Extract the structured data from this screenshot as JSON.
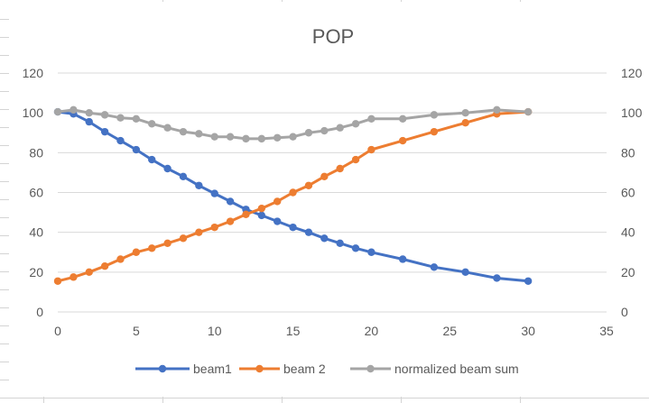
{
  "chart_data": {
    "type": "line",
    "title": "POP",
    "xlabel": "",
    "ylabel": "",
    "xlim": [
      0,
      35
    ],
    "ylim": [
      0,
      120
    ],
    "x_ticks": [
      "0",
      "5",
      "10",
      "15",
      "20",
      "25",
      "30",
      "35"
    ],
    "y_ticks": [
      "0",
      "20",
      "40",
      "60",
      "80",
      "100",
      "120"
    ],
    "y2_ticks": [
      "0",
      "20",
      "40",
      "60",
      "80",
      "100",
      "120"
    ],
    "grid": true,
    "legend_position": "bottom",
    "series": [
      {
        "name": "beam1",
        "color": "#4472C4",
        "x": [
          0,
          1,
          2,
          3,
          4,
          5,
          6,
          7,
          8,
          9,
          10,
          11,
          12,
          13,
          14,
          15,
          16,
          17,
          18,
          19,
          20,
          22,
          24,
          26,
          28,
          30
        ],
        "y": [
          100.5,
          99.5,
          95.5,
          90.5,
          86,
          81.5,
          76.5,
          72,
          68,
          63.5,
          59.5,
          55.5,
          51.5,
          48.5,
          45.5,
          42.5,
          40,
          37,
          34.5,
          32,
          30,
          26.5,
          22.5,
          20,
          17,
          15.5
        ]
      },
      {
        "name": "beam 2",
        "color": "#ED7D31",
        "x": [
          0,
          1,
          2,
          3,
          4,
          5,
          6,
          7,
          8,
          9,
          10,
          11,
          12,
          13,
          14,
          15,
          16,
          17,
          18,
          19,
          20,
          22,
          24,
          26,
          28,
          30
        ],
        "y": [
          15.5,
          17.5,
          20,
          23,
          26.5,
          30,
          32,
          34.5,
          37,
          40,
          42.5,
          45.5,
          49,
          52,
          55.5,
          60,
          63.5,
          68,
          72,
          76.5,
          81.5,
          86,
          90.5,
          95,
          99.5,
          100.5
        ]
      },
      {
        "name": "normalized beam sum",
        "color": "#A5A5A5",
        "x": [
          0,
          1,
          2,
          3,
          4,
          5,
          6,
          7,
          8,
          9,
          10,
          11,
          12,
          13,
          14,
          15,
          16,
          17,
          18,
          19,
          20,
          22,
          24,
          26,
          28,
          30
        ],
        "y": [
          100.5,
          101.5,
          100,
          99,
          97.5,
          97,
          94.5,
          92.5,
          90.5,
          89.5,
          88,
          88,
          87,
          87,
          87.5,
          88,
          90,
          91,
          92.5,
          94.5,
          97,
          97,
          99,
          100,
          101.5,
          100.5
        ]
      }
    ]
  }
}
